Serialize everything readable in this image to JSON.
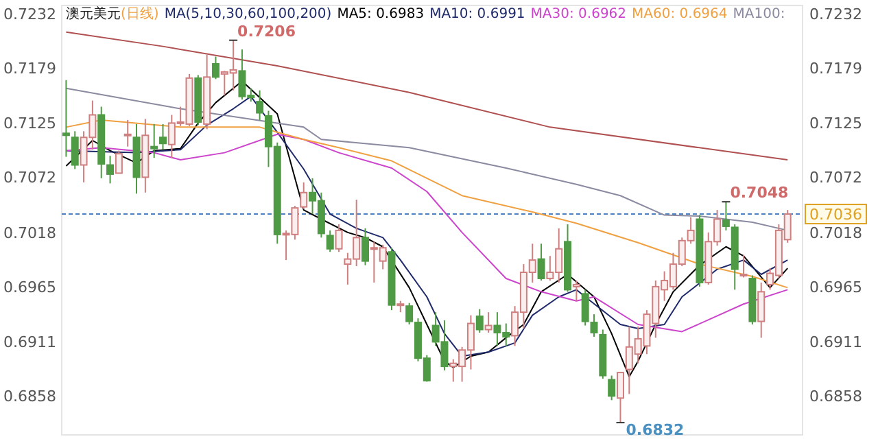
{
  "chart_data": {
    "type": "candlestick",
    "title": "澳元美元",
    "subtitle": "(日线)",
    "legend_title": "MA(5,10,30,60,100,200)",
    "legend": "top",
    "tick_labels": "y",
    "categories": [
      null,
      null,
      null,
      null,
      null,
      null,
      null,
      null,
      null,
      null,
      null,
      null,
      null,
      null,
      null,
      null,
      null,
      null,
      null,
      null,
      null,
      null,
      null,
      null,
      null,
      null,
      null,
      null,
      null,
      null,
      null,
      null,
      null,
      null,
      null,
      null,
      null,
      null,
      null,
      null,
      null,
      null,
      null,
      null,
      null,
      null,
      null,
      null,
      null,
      null,
      null,
      null,
      null,
      null,
      null,
      null,
      null,
      null,
      null,
      null,
      null,
      null,
      null,
      null,
      null,
      null,
      null,
      null,
      null,
      null,
      null,
      null,
      null,
      null,
      null,
      null,
      null,
      null,
      null,
      null,
      null,
      null,
      null
    ],
    "ohlc": [
      [
        0.7115,
        0.7167,
        0.7092,
        0.7113
      ],
      [
        0.7111,
        0.7117,
        0.708,
        0.7084
      ],
      [
        0.7084,
        0.7117,
        0.7067,
        0.7111
      ],
      [
        0.7111,
        0.7147,
        0.7099,
        0.7133
      ],
      [
        0.7133,
        0.7141,
        0.7071,
        0.7085
      ],
      [
        0.7084,
        0.7093,
        0.7066,
        0.7075
      ],
      [
        0.7076,
        0.7098,
        0.7076,
        0.7095
      ],
      [
        0.7113,
        0.7128,
        0.7102,
        0.7114
      ],
      [
        0.7111,
        0.7124,
        0.7056,
        0.7072
      ],
      [
        0.7072,
        0.7129,
        0.7057,
        0.7113
      ],
      [
        0.7102,
        0.7124,
        0.7091,
        0.71
      ],
      [
        0.7111,
        0.7124,
        0.7099,
        0.7105
      ],
      [
        0.7104,
        0.7133,
        0.7091,
        0.7125
      ],
      [
        0.7125,
        0.7141,
        0.7122,
        0.7126
      ],
      [
        0.7124,
        0.7173,
        0.7122,
        0.7169
      ],
      [
        0.7169,
        0.7172,
        0.7123,
        0.7126
      ],
      [
        0.7124,
        0.7192,
        0.7119,
        0.717
      ],
      [
        0.7183,
        0.719,
        0.7168,
        0.717
      ],
      [
        0.7173,
        0.7176,
        0.7152,
        0.7175
      ],
      [
        0.7174,
        0.7206,
        0.7157,
        0.7177
      ],
      [
        0.7176,
        0.7197,
        0.7148,
        0.7151
      ],
      [
        0.7152,
        0.7159,
        0.7146,
        0.715
      ],
      [
        0.7146,
        0.7157,
        0.7128,
        0.7135
      ],
      [
        0.7132,
        0.7137,
        0.7082,
        0.7102
      ],
      [
        0.7102,
        0.7106,
        0.7007,
        0.7016
      ],
      [
        0.7016,
        0.702,
        0.6991,
        0.7017
      ],
      [
        0.7016,
        0.7044,
        0.7011,
        0.7042
      ],
      [
        0.7043,
        0.7067,
        0.7041,
        0.7057
      ],
      [
        0.7057,
        0.7071,
        0.7036,
        0.7049
      ],
      [
        0.7049,
        0.7057,
        0.7013,
        0.7017
      ],
      [
        0.7015,
        0.702,
        0.6999,
        0.7002
      ],
      [
        0.7002,
        0.7026,
        0.6999,
        0.702
      ],
      [
        0.6987,
        0.6998,
        0.6967,
        0.6992
      ],
      [
        0.6992,
        0.705,
        0.6985,
        0.7013
      ],
      [
        0.7013,
        0.7022,
        0.6986,
        0.699
      ],
      [
        0.7002,
        0.7009,
        0.6969,
        0.7003
      ],
      [
        0.699,
        0.7006,
        0.6982,
        0.7003
      ],
      [
        0.6999,
        0.7003,
        0.6942,
        0.6947
      ],
      [
        0.6947,
        0.6951,
        0.694,
        0.6948
      ],
      [
        0.6946,
        0.6949,
        0.6928,
        0.6931
      ],
      [
        0.693,
        0.6934,
        0.6892,
        0.6895
      ],
      [
        0.6895,
        0.6898,
        0.6872,
        0.6873
      ],
      [
        0.6927,
        0.694,
        0.6907,
        0.6911
      ],
      [
        0.6911,
        0.6932,
        0.6883,
        0.6887
      ],
      [
        0.6887,
        0.6894,
        0.6872,
        0.689
      ],
      [
        0.6887,
        0.6906,
        0.6872,
        0.6903
      ],
      [
        0.6903,
        0.6937,
        0.6884,
        0.6929
      ],
      [
        0.6936,
        0.6943,
        0.692,
        0.6923
      ],
      [
        0.6923,
        0.694,
        0.692,
        0.6927
      ],
      [
        0.6927,
        0.694,
        0.6907,
        0.692
      ],
      [
        0.692,
        0.6929,
        0.6907,
        0.6916
      ],
      [
        0.6917,
        0.6946,
        0.6907,
        0.694
      ],
      [
        0.694,
        0.6987,
        0.6924,
        0.6979
      ],
      [
        0.6979,
        0.7007,
        0.6969,
        0.6991
      ],
      [
        0.6992,
        0.7007,
        0.6971,
        0.6973
      ],
      [
        0.6973,
        0.6995,
        0.6971,
        0.6979
      ],
      [
        0.6979,
        0.7022,
        0.6969,
        0.7002
      ],
      [
        0.7009,
        0.7026,
        0.696,
        0.6962
      ],
      [
        0.6965,
        0.6971,
        0.6951,
        0.6967
      ],
      [
        0.6958,
        0.6962,
        0.6927,
        0.6931
      ],
      [
        0.693,
        0.6938,
        0.6916,
        0.692
      ],
      [
        0.6918,
        0.6923,
        0.6875,
        0.6878
      ],
      [
        0.6874,
        0.6878,
        0.6854,
        0.6858
      ],
      [
        0.6856,
        0.6881,
        0.6832,
        0.6881
      ],
      [
        0.6884,
        0.6926,
        0.686,
        0.6906
      ],
      [
        0.6899,
        0.6926,
        0.689,
        0.6914
      ],
      [
        0.6907,
        0.6942,
        0.6899,
        0.6938
      ],
      [
        0.6929,
        0.6971,
        0.6915,
        0.6965
      ],
      [
        0.6962,
        0.698,
        0.6951,
        0.6971
      ],
      [
        0.6965,
        0.6998,
        0.6962,
        0.6987
      ],
      [
        0.6987,
        0.7013,
        0.6985,
        0.701
      ],
      [
        0.701,
        0.7033,
        0.7007,
        0.702
      ],
      [
        0.7031,
        0.7035,
        0.6965,
        0.6969
      ],
      [
        0.6969,
        0.7018,
        0.6967,
        0.7009
      ],
      [
        0.7009,
        0.704,
        0.7005,
        0.7031
      ],
      [
        0.703,
        0.7048,
        0.702,
        0.7024
      ],
      [
        0.7023,
        0.7026,
        0.6962,
        0.6982
      ],
      [
        0.6976,
        0.6996,
        0.6974,
        0.6977
      ],
      [
        0.6973,
        0.6976,
        0.6928,
        0.6931
      ],
      [
        0.6931,
        0.6969,
        0.6915,
        0.696
      ],
      [
        0.6967,
        0.6983,
        0.6962,
        0.6978
      ],
      [
        0.6976,
        0.7026,
        0.6973,
        0.702
      ],
      [
        0.7011,
        0.704,
        0.7008,
        0.7036
      ]
    ],
    "colors": [
      "#4f9a44",
      "#4f9a44",
      "#cf7f7f",
      "#cf7f7f",
      "#4f9a44",
      "#4f9a44",
      "#cf7f7f",
      "#cf7f7f",
      "#4f9a44",
      "#cf7f7f",
      "#4f9a44",
      "#4f9a44",
      "#cf7f7f",
      "#cf7f7f",
      "#cf7f7f",
      "#4f9a44",
      "#cf7f7f",
      "#4f9a44",
      "#cf7f7f",
      "#cf7f7f",
      "#4f9a44",
      "#4f9a44",
      "#4f9a44",
      "#4f9a44",
      "#4f9a44",
      "#cf7f7f",
      "#cf7f7f",
      "#cf7f7f",
      "#4f9a44",
      "#4f9a44",
      "#4f9a44",
      "#cf7f7f",
      "#cf7f7f",
      "#cf7f7f",
      "#4f9a44",
      "#cf7f7f",
      "#cf7f7f",
      "#4f9a44",
      "#cf7f7f",
      "#4f9a44",
      "#4f9a44",
      "#4f9a44",
      "#4f9a44",
      "#4f9a44",
      "#cf7f7f",
      "#cf7f7f",
      "#cf7f7f",
      "#4f9a44",
      "#cf7f7f",
      "#4f9a44",
      "#4f9a44",
      "#cf7f7f",
      "#cf7f7f",
      "#cf7f7f",
      "#4f9a44",
      "#cf7f7f",
      "#cf7f7f",
      "#4f9a44",
      "#cf7f7f",
      "#4f9a44",
      "#4f9a44",
      "#4f9a44",
      "#4f9a44",
      "#cf7f7f",
      "#cf7f7f",
      "#cf7f7f",
      "#cf7f7f",
      "#cf7f7f",
      "#cf7f7f",
      "#cf7f7f",
      "#cf7f7f",
      "#cf7f7f",
      "#4f9a44",
      "#cf7f7f",
      "#cf7f7f",
      "#4f9a44",
      "#4f9a44",
      "#cf7f7f",
      "#4f9a44",
      "#cf7f7f",
      "#cf7f7f",
      "#cf7f7f",
      "#cf7f7f"
    ],
    "series": [
      {
        "type": "line",
        "name": "MA5: 0.6983",
        "color": "#000000",
        "values": [
          0.7083,
          null,
          null,
          0.7108,
          null,
          0.7098,
          null,
          null,
          0.7086,
          null,
          0.7098,
          null,
          null,
          0.71,
          null,
          0.7125,
          null,
          0.7145,
          null,
          null,
          0.7166,
          null,
          null,
          null,
          0.7134,
          null,
          null,
          0.704,
          null,
          0.7031,
          null,
          null,
          0.7018,
          null,
          0.7013,
          null,
          0.7004,
          null,
          null,
          0.6964,
          null,
          0.6928,
          null,
          0.6892,
          0.6886,
          null,
          0.6897,
          null,
          0.6901,
          null,
          0.6915,
          null,
          0.6928,
          null,
          0.696,
          null,
          null,
          0.6977,
          null,
          null,
          0.6955,
          null,
          0.6919,
          null,
          0.6877,
          0.6892,
          null,
          0.6928,
          null,
          0.696,
          null,
          null,
          0.6986,
          null,
          null,
          0.7004,
          null,
          0.6995,
          null,
          null,
          0.6964,
          null,
          0.6983
        ]
      },
      {
        "type": "line",
        "name": "MA10: 0.6991",
        "color": "#1f2a6b",
        "values": [
          0.7098,
          null,
          null,
          null,
          null,
          null,
          null,
          null,
          0.7096,
          null,
          null,
          null,
          null,
          0.7099,
          null,
          null,
          0.7123,
          null,
          null,
          0.7139,
          null,
          0.7151,
          null,
          null,
          0.7116,
          null,
          null,
          0.708,
          null,
          null,
          0.7036,
          null,
          null,
          0.7022,
          null,
          null,
          0.7013,
          null,
          0.6991,
          null,
          null,
          0.6955,
          null,
          0.6919,
          null,
          0.6897,
          null,
          null,
          0.6901,
          null,
          null,
          0.691,
          null,
          0.6937,
          null,
          null,
          0.6955,
          null,
          0.6962,
          0.6955,
          null,
          null,
          null,
          0.6928,
          null,
          0.6924,
          null,
          null,
          0.6928,
          null,
          0.6955,
          null,
          null,
          null,
          0.6982,
          null,
          null,
          0.6991,
          null,
          0.6977,
          null,
          null,
          0.6991
        ]
      },
      {
        "type": "line",
        "name": "MA30: 0.6962",
        "color": "#cc44cc",
        "values": [
          0.7098,
          null,
          null,
          null,
          0.7101,
          null,
          null,
          null,
          null,
          null,
          0.7096,
          null,
          null,
          0.7089,
          null,
          null,
          null,
          null,
          0.7096,
          null,
          null,
          null,
          null,
          null,
          0.7114,
          null,
          null,
          0.7109,
          null,
          null,
          null,
          0.7096,
          null,
          null,
          null,
          null,
          null,
          0.7081,
          null,
          null,
          null,
          0.7058,
          null,
          null,
          null,
          0.7018,
          null,
          null,
          null,
          null,
          0.6973,
          null,
          null,
          null,
          0.696,
          null,
          null,
          null,
          0.6951,
          null,
          0.6955,
          null,
          null,
          null,
          null,
          0.6928,
          null,
          null,
          null,
          null,
          0.6921,
          null,
          null,
          null,
          null,
          null,
          null,
          0.6948,
          null,
          null,
          null,
          null,
          0.6962
        ]
      },
      {
        "type": "line",
        "name": "MA60: 0.6964",
        "color": "#f0a040",
        "values": [
          0.7121,
          null,
          null,
          null,
          0.7128,
          null,
          null,
          null,
          null,
          null,
          null,
          null,
          null,
          0.7121,
          null,
          null,
          null,
          null,
          null,
          null,
          null,
          null,
          0.7121,
          null,
          0.7116,
          null,
          null,
          0.7109,
          null,
          null,
          null,
          0.7101,
          null,
          null,
          null,
          null,
          null,
          0.7088,
          null,
          null,
          null,
          0.7071,
          null,
          null,
          null,
          0.7054,
          null,
          null,
          null,
          null,
          null,
          null,
          null,
          0.7038,
          null,
          null,
          null,
          null,
          0.7027,
          null,
          null,
          null,
          null,
          null,
          null,
          0.7008,
          null,
          null,
          null,
          null,
          null,
          null,
          0.6987,
          null,
          null,
          null,
          null,
          null,
          0.6975,
          null,
          null,
          null,
          0.6964
        ]
      },
      {
        "type": "line",
        "name": "MA100:",
        "color": "#8a8aa0",
        "values": [
          0.7159,
          null,
          null,
          null,
          null,
          null,
          null,
          null,
          null,
          null,
          null,
          null,
          null,
          0.7139,
          null,
          null,
          null,
          null,
          null,
          null,
          null,
          null,
          null,
          null,
          null,
          null,
          null,
          0.7121,
          null,
          0.7109,
          null,
          null,
          null,
          null,
          null,
          null,
          null,
          null,
          null,
          0.7101,
          null,
          null,
          null,
          null,
          null,
          null,
          null,
          null,
          null,
          null,
          0.7081,
          null,
          null,
          null,
          null,
          null,
          null,
          null,
          0.7065,
          null,
          null,
          null,
          null,
          0.7054,
          null,
          null,
          null,
          null,
          0.7035,
          null,
          null,
          null,
          0.7034,
          null,
          null,
          null,
          null,
          null,
          0.7028,
          null,
          null,
          null,
          0.702
        ]
      },
      {
        "type": "line",
        "color": "#b05050",
        "values": [
          0.7214,
          null,
          null,
          null,
          null,
          null,
          null,
          null,
          null,
          null,
          null,
          0.72,
          null,
          null,
          null,
          null,
          null,
          null,
          null,
          null,
          null,
          null,
          null,
          null,
          0.7181,
          null,
          null,
          null,
          null,
          null,
          null,
          null,
          null,
          null,
          null,
          null,
          null,
          null,
          null,
          0.7155,
          null,
          null,
          null,
          null,
          null,
          null,
          null,
          null,
          null,
          null,
          null,
          null,
          null,
          null,
          null,
          0.7121,
          null,
          null,
          null,
          null,
          null,
          null,
          null,
          null,
          null,
          null,
          null,
          null,
          null,
          null,
          null,
          null,
          null,
          null,
          null,
          null,
          null,
          null,
          null,
          null,
          null,
          null,
          0.7089
        ]
      }
    ],
    "annotations": [
      "0.7206",
      "0.7048",
      "0.6832"
    ],
    "ref_lines": [
      {
        "axis": "y2",
        "value": 0.7036,
        "label": "0.7036",
        "color": "#4a80c0",
        "line_style": "dashed"
      }
    ],
    "ylim": [
      0.682,
      0.724
    ],
    "yticks": [
      0.6858,
      0.6911,
      0.6965,
      0.7018,
      0.7072,
      0.7125,
      0.7179,
      0.7232
    ],
    "y2lim": [
      0.682,
      0.724
    ],
    "y2ticks": [
      0.6858,
      0.6911,
      0.6965,
      0.7018,
      0.7072,
      0.7125,
      0.7179,
      0.7232
    ]
  }
}
